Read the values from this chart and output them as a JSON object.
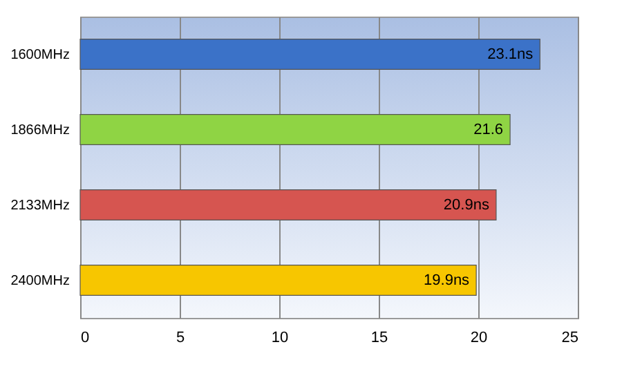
{
  "chart_data": {
    "type": "bar",
    "orientation": "horizontal",
    "categories": [
      "1600MHz",
      "1866MHz",
      "2133MHz",
      "2400MHz"
    ],
    "values": [
      23.1,
      21.6,
      20.9,
      19.9
    ],
    "colors": [
      "#3b72c8",
      "#8fd444",
      "#d65550",
      "#f7c600"
    ],
    "value_labels": [
      "23.1ns",
      "21.6",
      "20.9ns",
      "19.9ns"
    ],
    "xlim": [
      0,
      25
    ],
    "xticks": [
      0,
      5,
      10,
      15,
      20,
      25
    ],
    "grid": "x"
  }
}
